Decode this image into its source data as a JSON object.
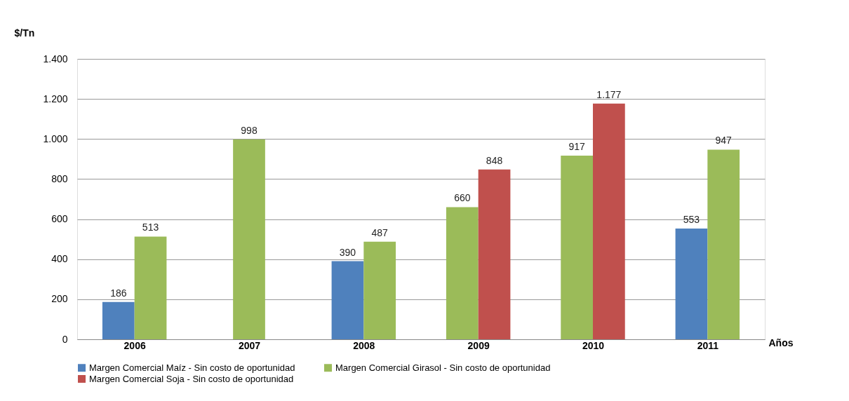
{
  "chart_data": {
    "type": "bar",
    "ylabel": "$/Tn",
    "xlabel": "Años",
    "categories": [
      "2006",
      "2007",
      "2008",
      "2009",
      "2010",
      "2011"
    ],
    "series": [
      {
        "name": "Margen Comercial Maíz - Sin costo de oportunidad",
        "color": "#4f81bd",
        "values": [
          186,
          null,
          390,
          null,
          null,
          553
        ],
        "value_labels": [
          "186",
          null,
          "390",
          null,
          null,
          "553"
        ]
      },
      {
        "name": "Margen Comercial  Girasol - Sin costo de oportunidad",
        "color": "#9bbb59",
        "values": [
          513,
          998,
          487,
          660,
          917,
          947
        ],
        "value_labels": [
          "513",
          "998",
          "487",
          "660",
          "917",
          "947"
        ]
      },
      {
        "name": "Margen Comercial Soja - Sin costo de oportunidad",
        "color": "#c0504d",
        "values": [
          null,
          null,
          null,
          848,
          1177,
          null
        ],
        "value_labels": [
          null,
          null,
          null,
          "848",
          "1.177",
          null
        ]
      }
    ],
    "ylim": [
      0,
      1400
    ],
    "yticks": [
      0,
      200,
      400,
      600,
      800,
      {
        "value": 1000,
        "label": "1.000"
      },
      {
        "value": 1200,
        "label": "1.200"
      },
      {
        "value": 1400,
        "label": "1.400"
      }
    ],
    "grid": "y",
    "legend": "bottom"
  }
}
